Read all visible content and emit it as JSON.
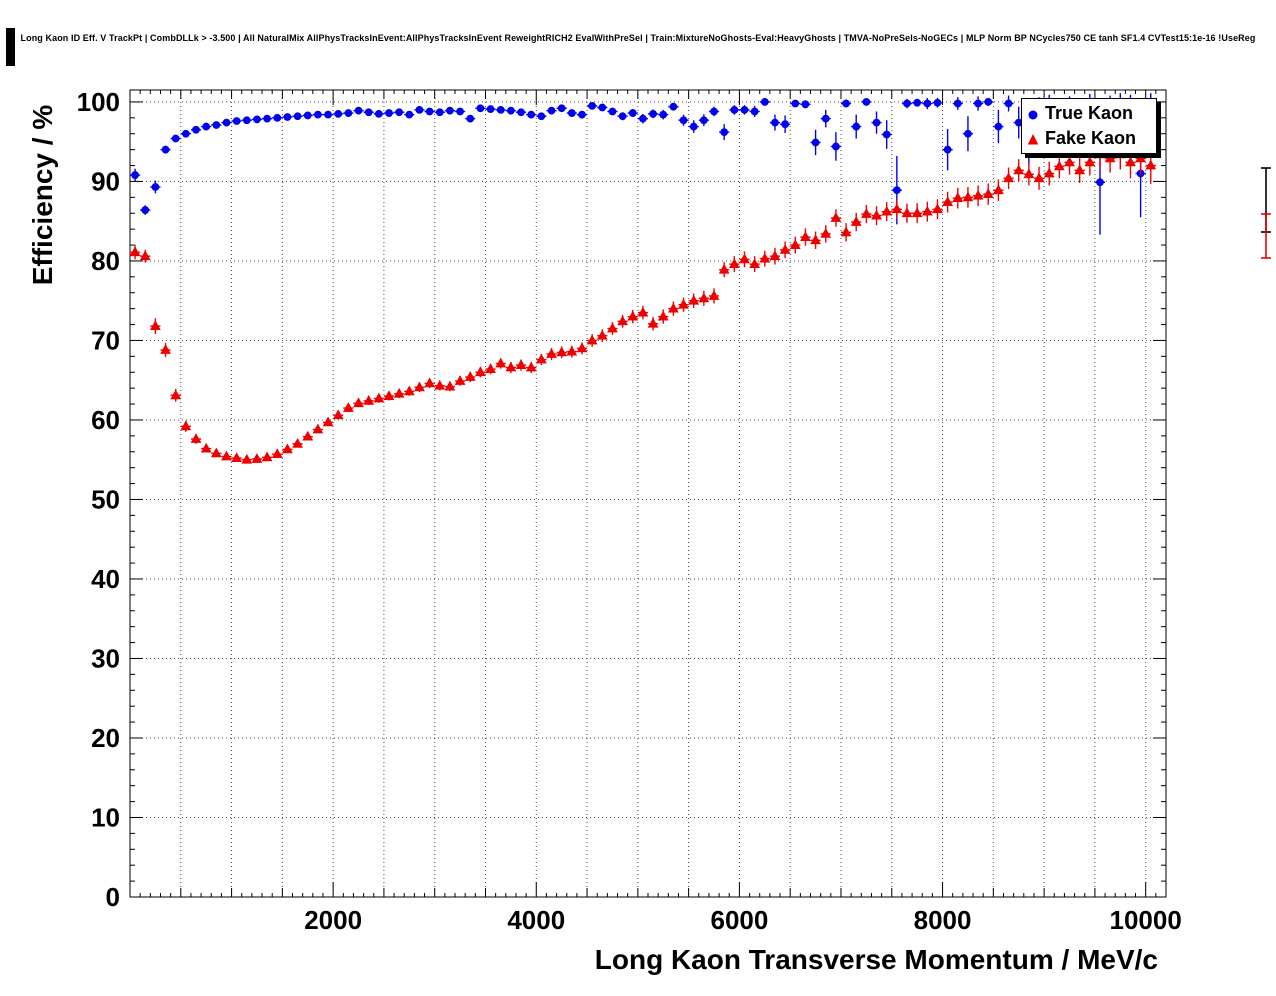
{
  "header": {
    "title": "Long Kaon ID Eff. V TrackPt | CombDLLk > -3.500 | All NaturalMix AllPhysTracksInEvent:AllPhysTracksInEvent ReweightRICH2 EvalWithPreSel | Train:MixtureNoGhosts-Eval:HeavyGhosts | TMVA-NoPreSels-NoGECs | MLP Norm BP NCycles750 CE tanh SF1.4 CVTest15:1e-16 !UseReg"
  },
  "legend": {
    "position": "top-right"
  },
  "chart_data": {
    "type": "scatter",
    "title": "Long Kaon ID Eff. V TrackPt | CombDLLk > -3.500 | All NaturalMix AllPhysTracksInEvent:AllPhysTracksInEvent ReweightRICH2 EvalWithPreSel | Train:MixtureNoGhosts-Eval:HeavyGhosts | TMVA-NoPreSels-NoGECs | MLP Norm BP NCycles750 CE tanh SF1.4 CVTest15:1e-16 !UseReg",
    "xlabel": "Long Kaon Transverse Momentum / MeV/c",
    "ylabel": "Efficiency / %",
    "xlim": [
      0,
      10200
    ],
    "ylim": [
      0,
      101.5
    ],
    "x_major_ticks": [
      2000,
      4000,
      6000,
      8000,
      10000
    ],
    "y_major_ticks": [
      0,
      10,
      20,
      30,
      40,
      50,
      60,
      70,
      80,
      90,
      100
    ],
    "x_grid_step": 500,
    "y_grid_step": 10,
    "x_minor_step": 100,
    "y_minor_step": 2,
    "grid": "dotted",
    "grid_color": "#4d4d4d",
    "axis_color": "#000000",
    "legend_position": "top-right",
    "x_bin_half_width": 50,
    "series": [
      {
        "name": "True Kaon",
        "marker": "circle",
        "color": "#0000ee",
        "points": [
          [
            50,
            90.8,
            0.8
          ],
          [
            150,
            86.4,
            0.6
          ],
          [
            250,
            89.3,
            0.8
          ],
          [
            350,
            94.0,
            0.5
          ],
          [
            450,
            95.4,
            0.45
          ],
          [
            550,
            96.0,
            0.4
          ],
          [
            650,
            96.5,
            0.35
          ],
          [
            750,
            96.9,
            0.3
          ],
          [
            850,
            97.1,
            0.3
          ],
          [
            950,
            97.4,
            0.25
          ],
          [
            1050,
            97.6,
            0.25
          ],
          [
            1150,
            97.7,
            0.25
          ],
          [
            1250,
            97.8,
            0.25
          ],
          [
            1350,
            97.9,
            0.2
          ],
          [
            1450,
            98.0,
            0.2
          ],
          [
            1550,
            98.1,
            0.2
          ],
          [
            1650,
            98.2,
            0.2
          ],
          [
            1750,
            98.3,
            0.2
          ],
          [
            1850,
            98.4,
            0.2
          ],
          [
            1950,
            98.4,
            0.2
          ],
          [
            2050,
            98.5,
            0.2
          ],
          [
            2150,
            98.6,
            0.2
          ],
          [
            2250,
            98.9,
            0.2
          ],
          [
            2350,
            98.7,
            0.2
          ],
          [
            2450,
            98.5,
            0.25
          ],
          [
            2550,
            98.6,
            0.25
          ],
          [
            2650,
            98.7,
            0.25
          ],
          [
            2750,
            98.4,
            0.25
          ],
          [
            2850,
            99.0,
            0.2
          ],
          [
            2950,
            98.8,
            0.25
          ],
          [
            3050,
            98.7,
            0.25
          ],
          [
            3150,
            98.9,
            0.25
          ],
          [
            3250,
            98.8,
            0.25
          ],
          [
            3350,
            97.9,
            0.35
          ],
          [
            3450,
            99.2,
            0.25
          ],
          [
            3550,
            99.1,
            0.25
          ],
          [
            3650,
            99.0,
            0.3
          ],
          [
            3750,
            98.9,
            0.3
          ],
          [
            3850,
            98.7,
            0.3
          ],
          [
            3950,
            98.4,
            0.35
          ],
          [
            4050,
            98.2,
            0.4
          ],
          [
            4150,
            98.9,
            0.35
          ],
          [
            4250,
            99.2,
            0.3
          ],
          [
            4350,
            98.6,
            0.4
          ],
          [
            4450,
            98.4,
            0.45
          ],
          [
            4550,
            99.5,
            0.3
          ],
          [
            4650,
            99.3,
            0.35
          ],
          [
            4750,
            98.8,
            0.45
          ],
          [
            4850,
            98.2,
            0.5
          ],
          [
            4950,
            98.6,
            0.5
          ],
          [
            5050,
            97.9,
            0.6
          ],
          [
            5150,
            98.5,
            0.55
          ],
          [
            5250,
            98.4,
            0.6
          ],
          [
            5350,
            99.4,
            0.4
          ],
          [
            5450,
            97.7,
            0.7
          ],
          [
            5550,
            96.9,
            0.8
          ],
          [
            5650,
            97.7,
            0.75
          ],
          [
            5750,
            98.8,
            0.6
          ],
          [
            5850,
            96.2,
            1.0
          ],
          [
            5950,
            99.0,
            0.6
          ],
          [
            6050,
            99.0,
            0.6
          ],
          [
            6150,
            98.8,
            0.7
          ],
          [
            6250,
            100.0,
            0.3
          ],
          [
            6350,
            97.4,
            1.0
          ],
          [
            6450,
            97.2,
            1.1
          ],
          [
            6550,
            99.8,
            0.4
          ],
          [
            6650,
            99.7,
            0.5
          ],
          [
            6750,
            94.9,
            1.6
          ],
          [
            6850,
            97.9,
            1.1
          ],
          [
            6950,
            94.4,
            1.8
          ],
          [
            7050,
            99.8,
            0.5
          ],
          [
            7150,
            96.9,
            1.5
          ],
          [
            7250,
            100.0,
            0.4
          ],
          [
            7350,
            97.4,
            1.4
          ],
          [
            7450,
            95.9,
            1.8
          ],
          [
            7550,
            88.9,
            4.3
          ],
          [
            7650,
            99.8,
            0.6
          ],
          [
            7750,
            99.9,
            0.5
          ],
          [
            7850,
            99.8,
            0.7
          ],
          [
            7950,
            99.9,
            0.6
          ],
          [
            8050,
            94.0,
            2.6
          ],
          [
            8150,
            99.8,
            0.8
          ],
          [
            8250,
            96.0,
            2.2
          ],
          [
            8350,
            99.8,
            0.9
          ],
          [
            8450,
            100.0,
            0.5
          ],
          [
            8550,
            96.9,
            2.1
          ],
          [
            8650,
            99.8,
            1.0
          ],
          [
            8750,
            97.4,
            2.0
          ],
          [
            8850,
            94.9,
            2.8
          ],
          [
            8950,
            100.0,
            0.6
          ],
          [
            9050,
            99.8,
            1.1
          ],
          [
            9150,
            96.4,
            2.6
          ],
          [
            9250,
            100.0,
            0.7
          ],
          [
            9350,
            97.3,
            2.4
          ],
          [
            9450,
            99.8,
            1.2
          ],
          [
            9550,
            89.9,
            6.6
          ],
          [
            9650,
            100.0,
            0.8
          ],
          [
            9750,
            99.8,
            1.3
          ],
          [
            9850,
            99.9,
            1.0
          ],
          [
            9950,
            91.0,
            5.5
          ],
          [
            10050,
            99.9,
            1.2
          ]
        ]
      },
      {
        "name": "Fake Kaon",
        "marker": "triangle",
        "color": "#ee0000",
        "points": [
          [
            50,
            81.1,
            0.9
          ],
          [
            150,
            80.6,
            0.8
          ],
          [
            250,
            71.8,
            1.0
          ],
          [
            350,
            68.8,
            0.9
          ],
          [
            450,
            63.1,
            0.8
          ],
          [
            550,
            59.2,
            0.7
          ],
          [
            650,
            57.6,
            0.6
          ],
          [
            750,
            56.4,
            0.5
          ],
          [
            850,
            55.8,
            0.45
          ],
          [
            950,
            55.4,
            0.4
          ],
          [
            1050,
            55.2,
            0.4
          ],
          [
            1150,
            55.0,
            0.35
          ],
          [
            1250,
            55.1,
            0.35
          ],
          [
            1350,
            55.3,
            0.35
          ],
          [
            1450,
            55.7,
            0.4
          ],
          [
            1550,
            56.3,
            0.4
          ],
          [
            1650,
            57.0,
            0.4
          ],
          [
            1750,
            57.9,
            0.45
          ],
          [
            1850,
            58.8,
            0.45
          ],
          [
            1950,
            59.7,
            0.45
          ],
          [
            2050,
            60.6,
            0.5
          ],
          [
            2150,
            61.5,
            0.5
          ],
          [
            2250,
            62.1,
            0.5
          ],
          [
            2350,
            62.4,
            0.5
          ],
          [
            2450,
            62.7,
            0.55
          ],
          [
            2550,
            63.0,
            0.55
          ],
          [
            2650,
            63.3,
            0.55
          ],
          [
            2750,
            63.6,
            0.55
          ],
          [
            2850,
            64.1,
            0.6
          ],
          [
            2950,
            64.6,
            0.6
          ],
          [
            3050,
            64.3,
            0.6
          ],
          [
            3150,
            64.2,
            0.6
          ],
          [
            3250,
            64.9,
            0.6
          ],
          [
            3350,
            65.4,
            0.65
          ],
          [
            3450,
            66.0,
            0.65
          ],
          [
            3550,
            66.4,
            0.65
          ],
          [
            3650,
            67.1,
            0.65
          ],
          [
            3750,
            66.6,
            0.7
          ],
          [
            3850,
            66.9,
            0.7
          ],
          [
            3950,
            66.6,
            0.7
          ],
          [
            4050,
            67.6,
            0.7
          ],
          [
            4150,
            68.3,
            0.75
          ],
          [
            4250,
            68.5,
            0.75
          ],
          [
            4350,
            68.6,
            0.75
          ],
          [
            4450,
            69.0,
            0.75
          ],
          [
            4550,
            70.0,
            0.8
          ],
          [
            4650,
            70.6,
            0.8
          ],
          [
            4750,
            71.5,
            0.8
          ],
          [
            4850,
            72.4,
            0.8
          ],
          [
            4950,
            73.0,
            0.85
          ],
          [
            5050,
            73.5,
            0.85
          ],
          [
            5150,
            72.1,
            0.85
          ],
          [
            5250,
            73.0,
            0.9
          ],
          [
            5350,
            74.0,
            0.9
          ],
          [
            5450,
            74.5,
            0.9
          ],
          [
            5550,
            75.0,
            0.9
          ],
          [
            5650,
            75.3,
            0.95
          ],
          [
            5750,
            75.6,
            0.95
          ],
          [
            5850,
            78.9,
            0.95
          ],
          [
            5950,
            79.6,
            1.0
          ],
          [
            6050,
            80.2,
            1.0
          ],
          [
            6150,
            79.6,
            1.0
          ],
          [
            6250,
            80.3,
            1.0
          ],
          [
            6350,
            80.6,
            1.05
          ],
          [
            6450,
            81.4,
            1.05
          ],
          [
            6550,
            82.0,
            1.05
          ],
          [
            6650,
            83.0,
            1.1
          ],
          [
            6750,
            82.6,
            1.1
          ],
          [
            6850,
            83.4,
            1.1
          ],
          [
            6950,
            85.4,
            1.1
          ],
          [
            7050,
            83.6,
            1.15
          ],
          [
            7150,
            84.9,
            1.15
          ],
          [
            7250,
            85.9,
            1.15
          ],
          [
            7350,
            85.7,
            1.2
          ],
          [
            7450,
            86.2,
            1.2
          ],
          [
            7550,
            86.5,
            1.2
          ],
          [
            7650,
            86.0,
            1.2
          ],
          [
            7750,
            86.0,
            1.25
          ],
          [
            7850,
            86.2,
            1.25
          ],
          [
            7950,
            86.5,
            1.25
          ],
          [
            8050,
            87.4,
            1.3
          ],
          [
            8150,
            87.9,
            1.3
          ],
          [
            8250,
            88.0,
            1.3
          ],
          [
            8350,
            88.2,
            1.3
          ],
          [
            8450,
            88.4,
            1.35
          ],
          [
            8550,
            88.9,
            1.35
          ],
          [
            8650,
            90.4,
            1.35
          ],
          [
            8750,
            91.4,
            1.4
          ],
          [
            8850,
            90.9,
            1.4
          ],
          [
            8950,
            90.4,
            1.45
          ],
          [
            9050,
            91.0,
            1.5
          ],
          [
            9150,
            91.9,
            1.5
          ],
          [
            9250,
            92.4,
            1.55
          ],
          [
            9350,
            91.4,
            1.6
          ],
          [
            9450,
            92.4,
            1.65
          ],
          [
            9550,
            93.4,
            1.7
          ],
          [
            9650,
            92.9,
            1.8
          ],
          [
            9750,
            93.4,
            1.9
          ],
          [
            9850,
            92.4,
            2.0
          ],
          [
            9950,
            92.9,
            2.1
          ],
          [
            10050,
            92.0,
            2.3
          ]
        ]
      }
    ]
  }
}
